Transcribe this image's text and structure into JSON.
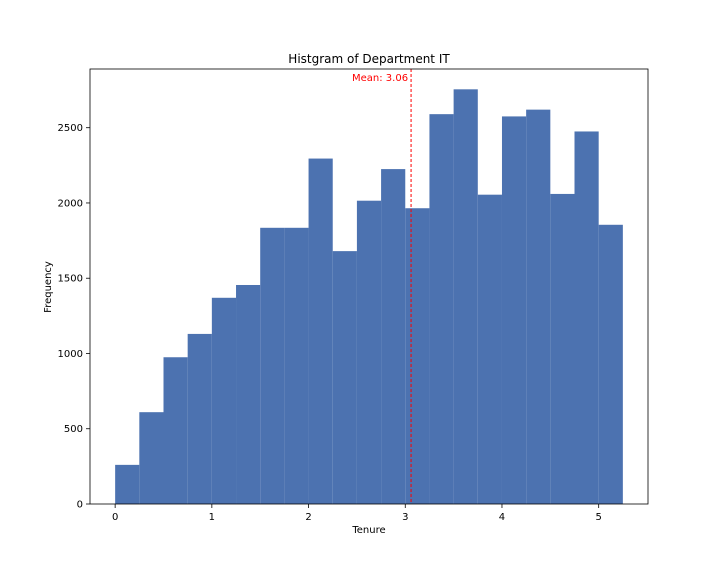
{
  "chart_data": {
    "type": "bar",
    "title": "Histgram of Department IT",
    "xlabel": "Tenure",
    "ylabel": "Frequency",
    "bin_width": 0.25,
    "bins": [
      {
        "x0": 0.0,
        "value": 260
      },
      {
        "x0": 0.25,
        "value": 610
      },
      {
        "x0": 0.5,
        "value": 975
      },
      {
        "x0": 0.75,
        "value": 1130
      },
      {
        "x0": 1.0,
        "value": 1370
      },
      {
        "x0": 1.25,
        "value": 1455
      },
      {
        "x0": 1.5,
        "value": 1835
      },
      {
        "x0": 1.75,
        "value": 1835
      },
      {
        "x0": 2.0,
        "value": 2295
      },
      {
        "x0": 2.25,
        "value": 1680
      },
      {
        "x0": 2.5,
        "value": 2015
      },
      {
        "x0": 2.75,
        "value": 2225
      },
      {
        "x0": 3.0,
        "value": 1965
      },
      {
        "x0": 3.25,
        "value": 2590
      },
      {
        "x0": 3.5,
        "value": 2755
      },
      {
        "x0": 3.75,
        "value": 2055
      },
      {
        "x0": 4.0,
        "value": 2575
      },
      {
        "x0": 4.25,
        "value": 2620
      },
      {
        "x0": 4.5,
        "value": 2060
      },
      {
        "x0": 4.75,
        "value": 2475
      },
      {
        "x0": 5.0,
        "value": 1855
      }
    ],
    "xlim": [
      -0.26,
      5.51
    ],
    "ylim": [
      0,
      2890
    ],
    "xticks": [
      0,
      1,
      2,
      3,
      4,
      5
    ],
    "yticks": [
      0,
      500,
      1000,
      1500,
      2000,
      2500
    ],
    "grid": false,
    "bar_color": "#4c72b0",
    "mean": {
      "value": 3.06,
      "label": "Mean: 3.06",
      "color": "#ff0000"
    }
  }
}
